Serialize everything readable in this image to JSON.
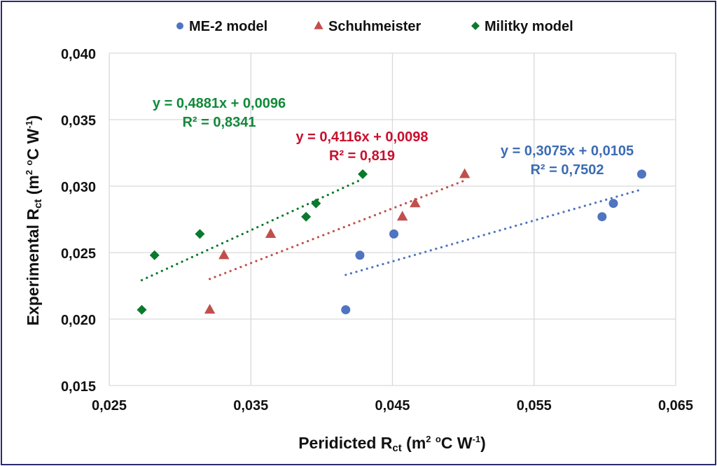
{
  "chart_data": {
    "type": "scatter",
    "xlabel_parts": [
      {
        "t": "Peridicted R",
        "k": "n"
      },
      {
        "t": "ct",
        "k": "sub"
      },
      {
        "t": " (m",
        "k": "n"
      },
      {
        "t": "2",
        "k": "sup"
      },
      {
        "t": " ",
        "k": "n"
      },
      {
        "t": "o",
        "k": "sup"
      },
      {
        "t": "C W",
        "k": "n"
      },
      {
        "t": "-1",
        "k": "sup"
      },
      {
        "t": ")",
        "k": "n"
      }
    ],
    "ylabel_parts": [
      {
        "t": "Experimental R",
        "k": "n"
      },
      {
        "t": "ct",
        "k": "sub"
      },
      {
        "t": " (m",
        "k": "n"
      },
      {
        "t": "2",
        "k": "sup"
      },
      {
        "t": " ",
        "k": "n"
      },
      {
        "t": "o",
        "k": "sup"
      },
      {
        "t": "C W",
        "k": "n"
      },
      {
        "t": "-1",
        "k": "sup"
      },
      {
        "t": ")",
        "k": "n"
      }
    ],
    "xlim": [
      0.025,
      0.065
    ],
    "ylim": [
      0.015,
      0.04
    ],
    "x_ticks": [
      "0,025",
      "0,035",
      "0,045",
      "0,055",
      "0,065"
    ],
    "y_ticks": [
      "0,015",
      "0,020",
      "0,025",
      "0,030",
      "0,035",
      "0,040"
    ],
    "grid": true,
    "legend_position": "top",
    "series": [
      {
        "name": "ME-2 model",
        "marker": "circle",
        "color": "#4f74c0",
        "label_color": "#3b6cb4",
        "x": [
          0.0417,
          0.0427,
          0.0451,
          0.0598,
          0.0606,
          0.0626
        ],
        "y": [
          0.0207,
          0.0248,
          0.0264,
          0.0277,
          0.0287,
          0.0309
        ],
        "trend": {
          "slope": 0.3075,
          "intercept": 0.0105,
          "equation": "y = 0,3075x + 0,0105",
          "r2": "R² = 0,7502"
        }
      },
      {
        "name": "Schuhmeister",
        "marker": "triangle",
        "color": "#c0504d",
        "label_color": "#c8102e",
        "x": [
          0.0321,
          0.0331,
          0.0364,
          0.0457,
          0.0466,
          0.0501
        ],
        "y": [
          0.0207,
          0.0248,
          0.0264,
          0.0277,
          0.0287,
          0.0309
        ],
        "trend": {
          "slope": 0.4116,
          "intercept": 0.0098,
          "equation": "y = 0,4116x + 0,0098",
          "r2": "R² = 0,819"
        }
      },
      {
        "name": "Militky model",
        "marker": "diamond",
        "color": "#0a7a2e",
        "label_color": "#12893a",
        "x": [
          0.0273,
          0.0282,
          0.0314,
          0.0389,
          0.0396,
          0.0429
        ],
        "y": [
          0.0207,
          0.0248,
          0.0264,
          0.0277,
          0.0287,
          0.0309
        ],
        "trend": {
          "slope": 0.4881,
          "intercept": 0.0096,
          "equation": "y = 0,4881x + 0,0096",
          "r2": "R² = 0,8341"
        }
      }
    ]
  }
}
